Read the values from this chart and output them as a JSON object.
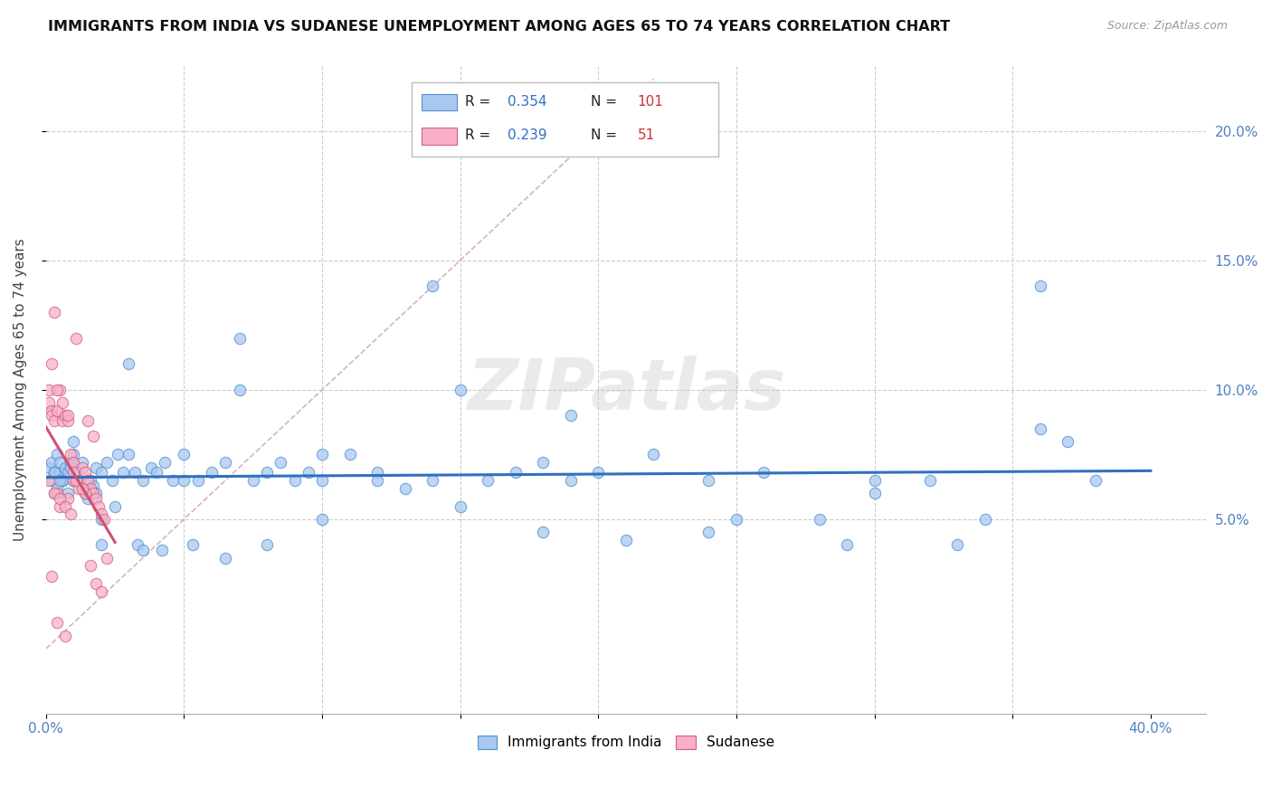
{
  "title": "IMMIGRANTS FROM INDIA VS SUDANESE UNEMPLOYMENT AMONG AGES 65 TO 74 YEARS CORRELATION CHART",
  "source": "Source: ZipAtlas.com",
  "ylabel": "Unemployment Among Ages 65 to 74 years",
  "xlim": [
    0.0,
    0.42
  ],
  "ylim": [
    -0.025,
    0.225
  ],
  "xtick_positions": [
    0.0,
    0.05,
    0.1,
    0.15,
    0.2,
    0.25,
    0.3,
    0.35,
    0.4
  ],
  "xticklabels": [
    "0.0%",
    "",
    "",
    "",
    "",
    "",
    "",
    "",
    "40.0%"
  ],
  "ytick_positions": [
    0.05,
    0.1,
    0.15,
    0.2
  ],
  "yticklabels_right": [
    "5.0%",
    "10.0%",
    "15.0%",
    "20.0%"
  ],
  "legend_labels": [
    "Immigrants from India",
    "Sudanese"
  ],
  "R_india": 0.354,
  "N_india": 101,
  "R_sudanese": 0.239,
  "N_sudanese": 51,
  "color_india": "#a8c8f0",
  "color_sudanese": "#f8b0c8",
  "edge_color_india": "#5090d0",
  "edge_color_sudanese": "#d06080",
  "trendline_color_india": "#3070c0",
  "trendline_color_sudanese": "#d05070",
  "diag_color": "#c8a0b8",
  "watermark": "ZIPatlas",
  "india_x": [
    0.001,
    0.002,
    0.002,
    0.003,
    0.003,
    0.004,
    0.004,
    0.005,
    0.005,
    0.006,
    0.007,
    0.008,
    0.008,
    0.009,
    0.01,
    0.01,
    0.011,
    0.012,
    0.013,
    0.014,
    0.015,
    0.016,
    0.017,
    0.018,
    0.02,
    0.022,
    0.024,
    0.026,
    0.028,
    0.03,
    0.032,
    0.035,
    0.038,
    0.04,
    0.043,
    0.046,
    0.05,
    0.055,
    0.06,
    0.065,
    0.07,
    0.075,
    0.08,
    0.085,
    0.09,
    0.095,
    0.1,
    0.11,
    0.12,
    0.13,
    0.14,
    0.15,
    0.16,
    0.17,
    0.18,
    0.19,
    0.2,
    0.22,
    0.24,
    0.26,
    0.28,
    0.3,
    0.32,
    0.34,
    0.36,
    0.38,
    0.003,
    0.006,
    0.009,
    0.013,
    0.018,
    0.025,
    0.033,
    0.042,
    0.053,
    0.065,
    0.08,
    0.1,
    0.12,
    0.15,
    0.18,
    0.21,
    0.25,
    0.29,
    0.33,
    0.37,
    0.01,
    0.02,
    0.03,
    0.05,
    0.07,
    0.1,
    0.14,
    0.19,
    0.24,
    0.3,
    0.36,
    0.005,
    0.01,
    0.02,
    0.035
  ],
  "india_y": [
    0.07,
    0.065,
    0.072,
    0.06,
    0.068,
    0.062,
    0.075,
    0.068,
    0.072,
    0.065,
    0.07,
    0.06,
    0.068,
    0.072,
    0.065,
    0.075,
    0.068,
    0.065,
    0.072,
    0.06,
    0.058,
    0.065,
    0.063,
    0.07,
    0.068,
    0.072,
    0.065,
    0.075,
    0.068,
    0.075,
    0.068,
    0.065,
    0.07,
    0.068,
    0.072,
    0.065,
    0.075,
    0.065,
    0.068,
    0.072,
    0.1,
    0.065,
    0.068,
    0.072,
    0.065,
    0.068,
    0.065,
    0.075,
    0.068,
    0.062,
    0.065,
    0.1,
    0.065,
    0.068,
    0.072,
    0.065,
    0.068,
    0.075,
    0.065,
    0.068,
    0.05,
    0.065,
    0.065,
    0.05,
    0.14,
    0.065,
    0.068,
    0.065,
    0.07,
    0.062,
    0.06,
    0.055,
    0.04,
    0.038,
    0.04,
    0.035,
    0.04,
    0.075,
    0.065,
    0.055,
    0.045,
    0.042,
    0.05,
    0.04,
    0.04,
    0.08,
    0.065,
    0.05,
    0.11,
    0.065,
    0.12,
    0.05,
    0.14,
    0.09,
    0.045,
    0.06,
    0.085,
    0.065,
    0.08,
    0.04,
    0.038
  ],
  "sudanese_x": [
    0.001,
    0.001,
    0.002,
    0.002,
    0.003,
    0.003,
    0.004,
    0.004,
    0.005,
    0.005,
    0.006,
    0.007,
    0.008,
    0.008,
    0.009,
    0.01,
    0.011,
    0.012,
    0.013,
    0.014,
    0.015,
    0.016,
    0.017,
    0.018,
    0.019,
    0.02,
    0.021,
    0.002,
    0.004,
    0.006,
    0.008,
    0.01,
    0.012,
    0.014,
    0.016,
    0.018,
    0.02,
    0.022,
    0.001,
    0.003,
    0.005,
    0.007,
    0.009,
    0.011,
    0.013,
    0.015,
    0.017,
    0.002,
    0.004,
    0.007,
    0.01
  ],
  "sudanese_y": [
    0.1,
    0.095,
    0.092,
    0.09,
    0.088,
    0.13,
    0.092,
    0.06,
    0.1,
    0.055,
    0.088,
    0.09,
    0.088,
    0.058,
    0.075,
    0.072,
    0.12,
    0.065,
    0.07,
    0.068,
    0.065,
    0.062,
    0.06,
    0.058,
    0.055,
    0.052,
    0.05,
    0.11,
    0.1,
    0.095,
    0.09,
    0.065,
    0.062,
    0.06,
    0.032,
    0.025,
    0.022,
    0.035,
    0.065,
    0.06,
    0.058,
    0.055,
    0.052,
    0.065,
    0.062,
    0.088,
    0.082,
    0.028,
    0.01,
    0.005,
    0.068
  ]
}
